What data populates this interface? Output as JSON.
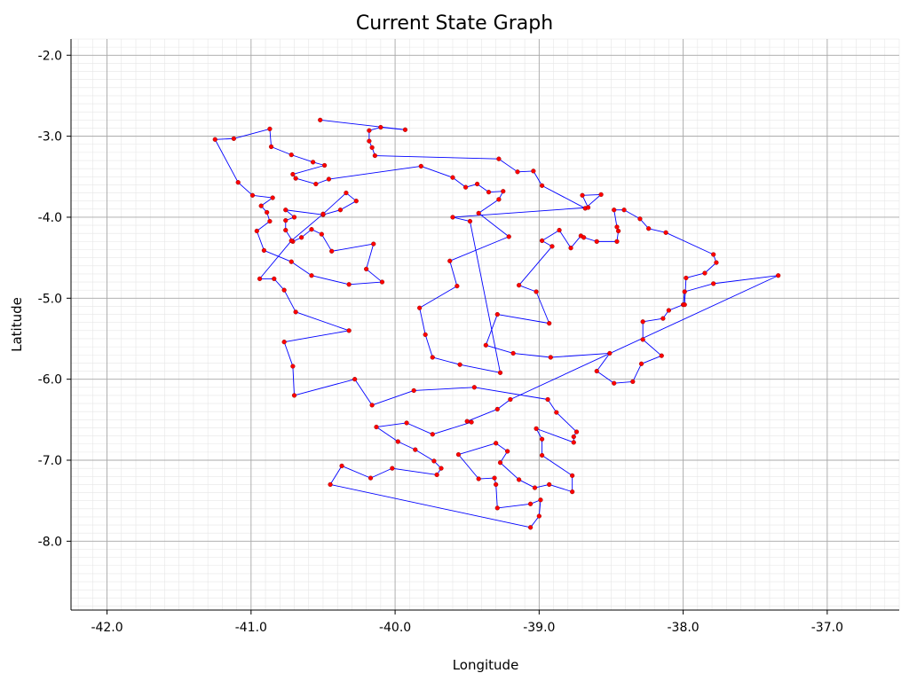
{
  "chart_data": {
    "type": "line",
    "title": "Current State Graph",
    "xlabel": "Longitude",
    "ylabel": "Latitude",
    "xlim": [
      -42.25,
      -36.5
    ],
    "ylim": [
      -8.85,
      -1.8
    ],
    "xticks": [
      -42.0,
      -41.0,
      -40.0,
      -39.0,
      -38.0,
      -37.0
    ],
    "yticks": [
      -2.0,
      -3.0,
      -4.0,
      -5.0,
      -6.0,
      -7.0,
      -8.0
    ],
    "xtick_labels": [
      "-42.0",
      "-41.0",
      "-40.0",
      "-39.0",
      "-38.0",
      "-37.0"
    ],
    "ytick_labels": [
      "-2.0",
      "-3.0",
      "-4.0",
      "-5.0",
      "-6.0",
      "-7.0",
      "-8.0"
    ],
    "grid": true,
    "minor_grid": true,
    "line_color": "#0000ff",
    "marker_color": "#ff0000",
    "series": [
      {
        "points": [
          [
            -40.52,
            -2.8
          ],
          [
            -39.93,
            -2.92
          ],
          [
            -40.1,
            -2.89
          ],
          [
            -40.18,
            -2.93
          ],
          [
            -40.18,
            -3.06
          ],
          [
            -40.16,
            -3.14
          ],
          [
            -40.14,
            -3.24
          ],
          [
            -39.28,
            -3.28
          ],
          [
            -39.15,
            -3.44
          ],
          [
            -39.04,
            -3.43
          ],
          [
            -38.98,
            -3.61
          ],
          [
            -38.68,
            -3.89
          ],
          [
            -38.57,
            -3.72
          ],
          [
            -38.7,
            -3.73
          ],
          [
            -38.66,
            -3.88
          ],
          [
            -39.6,
            -4.0
          ],
          [
            -39.48,
            -4.05
          ],
          [
            -39.27,
            -5.92
          ],
          [
            -39.55,
            -5.82
          ],
          [
            -39.74,
            -5.73
          ],
          [
            -39.79,
            -5.45
          ],
          [
            -39.83,
            -5.12
          ],
          [
            -39.57,
            -4.85
          ],
          [
            -39.62,
            -4.54
          ],
          [
            -39.21,
            -4.24
          ],
          [
            -39.42,
            -3.95
          ],
          [
            -39.28,
            -3.78
          ],
          [
            -39.25,
            -3.68
          ],
          [
            -39.35,
            -3.69
          ],
          [
            -39.43,
            -3.59
          ],
          [
            -39.51,
            -3.63
          ],
          [
            -39.6,
            -3.51
          ],
          [
            -39.82,
            -3.37
          ],
          [
            -40.46,
            -3.53
          ],
          [
            -40.55,
            -3.59
          ],
          [
            -40.69,
            -3.52
          ],
          [
            -40.71,
            -3.47
          ],
          [
            -40.49,
            -3.36
          ],
          [
            -40.57,
            -3.32
          ],
          [
            -40.72,
            -3.23
          ],
          [
            -40.86,
            -3.13
          ],
          [
            -40.87,
            -2.91
          ],
          [
            -41.12,
            -3.03
          ],
          [
            -41.25,
            -3.04
          ],
          [
            -41.09,
            -3.57
          ],
          [
            -40.99,
            -3.73
          ],
          [
            -40.85,
            -3.76
          ],
          [
            -40.93,
            -3.86
          ],
          [
            -40.89,
            -3.94
          ],
          [
            -40.87,
            -4.05
          ],
          [
            -40.96,
            -4.17
          ],
          [
            -40.91,
            -4.41
          ],
          [
            -40.72,
            -4.55
          ],
          [
            -40.58,
            -4.72
          ],
          [
            -40.32,
            -4.83
          ],
          [
            -40.09,
            -4.8
          ],
          [
            -40.2,
            -4.64
          ],
          [
            -40.15,
            -4.33
          ],
          [
            -40.44,
            -4.42
          ],
          [
            -40.51,
            -4.21
          ],
          [
            -40.58,
            -4.15
          ],
          [
            -40.65,
            -4.25
          ],
          [
            -40.71,
            -4.3
          ],
          [
            -40.76,
            -4.16
          ],
          [
            -40.76,
            -4.04
          ],
          [
            -40.7,
            -4.0
          ],
          [
            -40.76,
            -3.91
          ],
          [
            -40.5,
            -3.97
          ],
          [
            -40.38,
            -3.91
          ],
          [
            -40.27,
            -3.8
          ],
          [
            -40.34,
            -3.7
          ],
          [
            -40.5,
            -3.96
          ],
          [
            -40.72,
            -4.29
          ],
          [
            -40.94,
            -4.76
          ],
          [
            -40.84,
            -4.76
          ],
          [
            -40.77,
            -4.9
          ],
          [
            -40.69,
            -5.17
          ],
          [
            -40.32,
            -5.4
          ],
          [
            -40.77,
            -5.54
          ],
          [
            -40.71,
            -5.84
          ],
          [
            -40.7,
            -6.2
          ],
          [
            -40.28,
            -6.0
          ],
          [
            -40.16,
            -6.32
          ],
          [
            -39.87,
            -6.14
          ],
          [
            -39.45,
            -6.1
          ],
          [
            -38.94,
            -6.25
          ],
          [
            -38.88,
            -6.41
          ],
          [
            -38.74,
            -6.65
          ],
          [
            -38.76,
            -6.71
          ],
          [
            -38.76,
            -6.78
          ],
          [
            -39.02,
            -6.61
          ],
          [
            -38.98,
            -6.74
          ],
          [
            -38.98,
            -6.94
          ],
          [
            -38.77,
            -7.19
          ],
          [
            -38.77,
            -7.39
          ],
          [
            -38.93,
            -7.3
          ],
          [
            -39.03,
            -7.34
          ],
          [
            -39.14,
            -7.24
          ],
          [
            -39.27,
            -7.03
          ],
          [
            -39.22,
            -6.89
          ],
          [
            -39.3,
            -6.79
          ],
          [
            -39.56,
            -6.93
          ],
          [
            -39.42,
            -7.23
          ],
          [
            -39.31,
            -7.22
          ],
          [
            -39.3,
            -7.3
          ],
          [
            -39.29,
            -7.59
          ],
          [
            -39.06,
            -7.54
          ],
          [
            -38.99,
            -7.49
          ],
          [
            -39.0,
            -7.69
          ],
          [
            -39.06,
            -7.83
          ],
          [
            -40.45,
            -7.3
          ],
          [
            -40.37,
            -7.07
          ],
          [
            -40.17,
            -7.22
          ],
          [
            -40.02,
            -7.1
          ],
          [
            -39.71,
            -7.18
          ],
          [
            -39.68,
            -7.1
          ],
          [
            -39.73,
            -7.01
          ],
          [
            -39.86,
            -6.87
          ],
          [
            -39.98,
            -6.77
          ],
          [
            -40.13,
            -6.59
          ],
          [
            -39.92,
            -6.54
          ],
          [
            -39.74,
            -6.68
          ],
          [
            -39.47,
            -6.53
          ],
          [
            -39.5,
            -6.52
          ],
          [
            -39.29,
            -6.37
          ],
          [
            -39.2,
            -6.25
          ],
          [
            -37.34,
            -4.72
          ],
          [
            -37.79,
            -4.82
          ],
          [
            -37.99,
            -4.92
          ],
          [
            -38.0,
            -5.08
          ],
          [
            -38.1,
            -5.15
          ],
          [
            -38.14,
            -5.25
          ],
          [
            -38.28,
            -5.29
          ],
          [
            -38.28,
            -5.51
          ],
          [
            -38.15,
            -5.71
          ],
          [
            -38.29,
            -5.81
          ],
          [
            -38.35,
            -6.03
          ],
          [
            -38.48,
            -6.05
          ],
          [
            -38.6,
            -5.9
          ],
          [
            -38.51,
            -5.68
          ],
          [
            -38.92,
            -5.73
          ],
          [
            -39.18,
            -5.68
          ],
          [
            -39.37,
            -5.58
          ],
          [
            -39.29,
            -5.2
          ],
          [
            -38.93,
            -5.31
          ],
          [
            -39.02,
            -4.92
          ],
          [
            -39.14,
            -4.84
          ],
          [
            -38.91,
            -4.36
          ],
          [
            -38.98,
            -4.29
          ],
          [
            -38.86,
            -4.16
          ],
          [
            -38.78,
            -4.38
          ],
          [
            -38.71,
            -4.23
          ],
          [
            -38.69,
            -4.25
          ],
          [
            -38.6,
            -4.3
          ],
          [
            -38.46,
            -4.3
          ],
          [
            -38.45,
            -4.17
          ],
          [
            -38.46,
            -4.12
          ],
          [
            -38.48,
            -3.91
          ],
          [
            -38.41,
            -3.91
          ],
          [
            -38.3,
            -4.02
          ],
          [
            -38.24,
            -4.14
          ],
          [
            -38.12,
            -4.19
          ],
          [
            -37.79,
            -4.46
          ],
          [
            -37.77,
            -4.56
          ],
          [
            -37.85,
            -4.69
          ],
          [
            -37.98,
            -4.75
          ],
          [
            -37.99,
            -5.08
          ]
        ]
      }
    ]
  }
}
